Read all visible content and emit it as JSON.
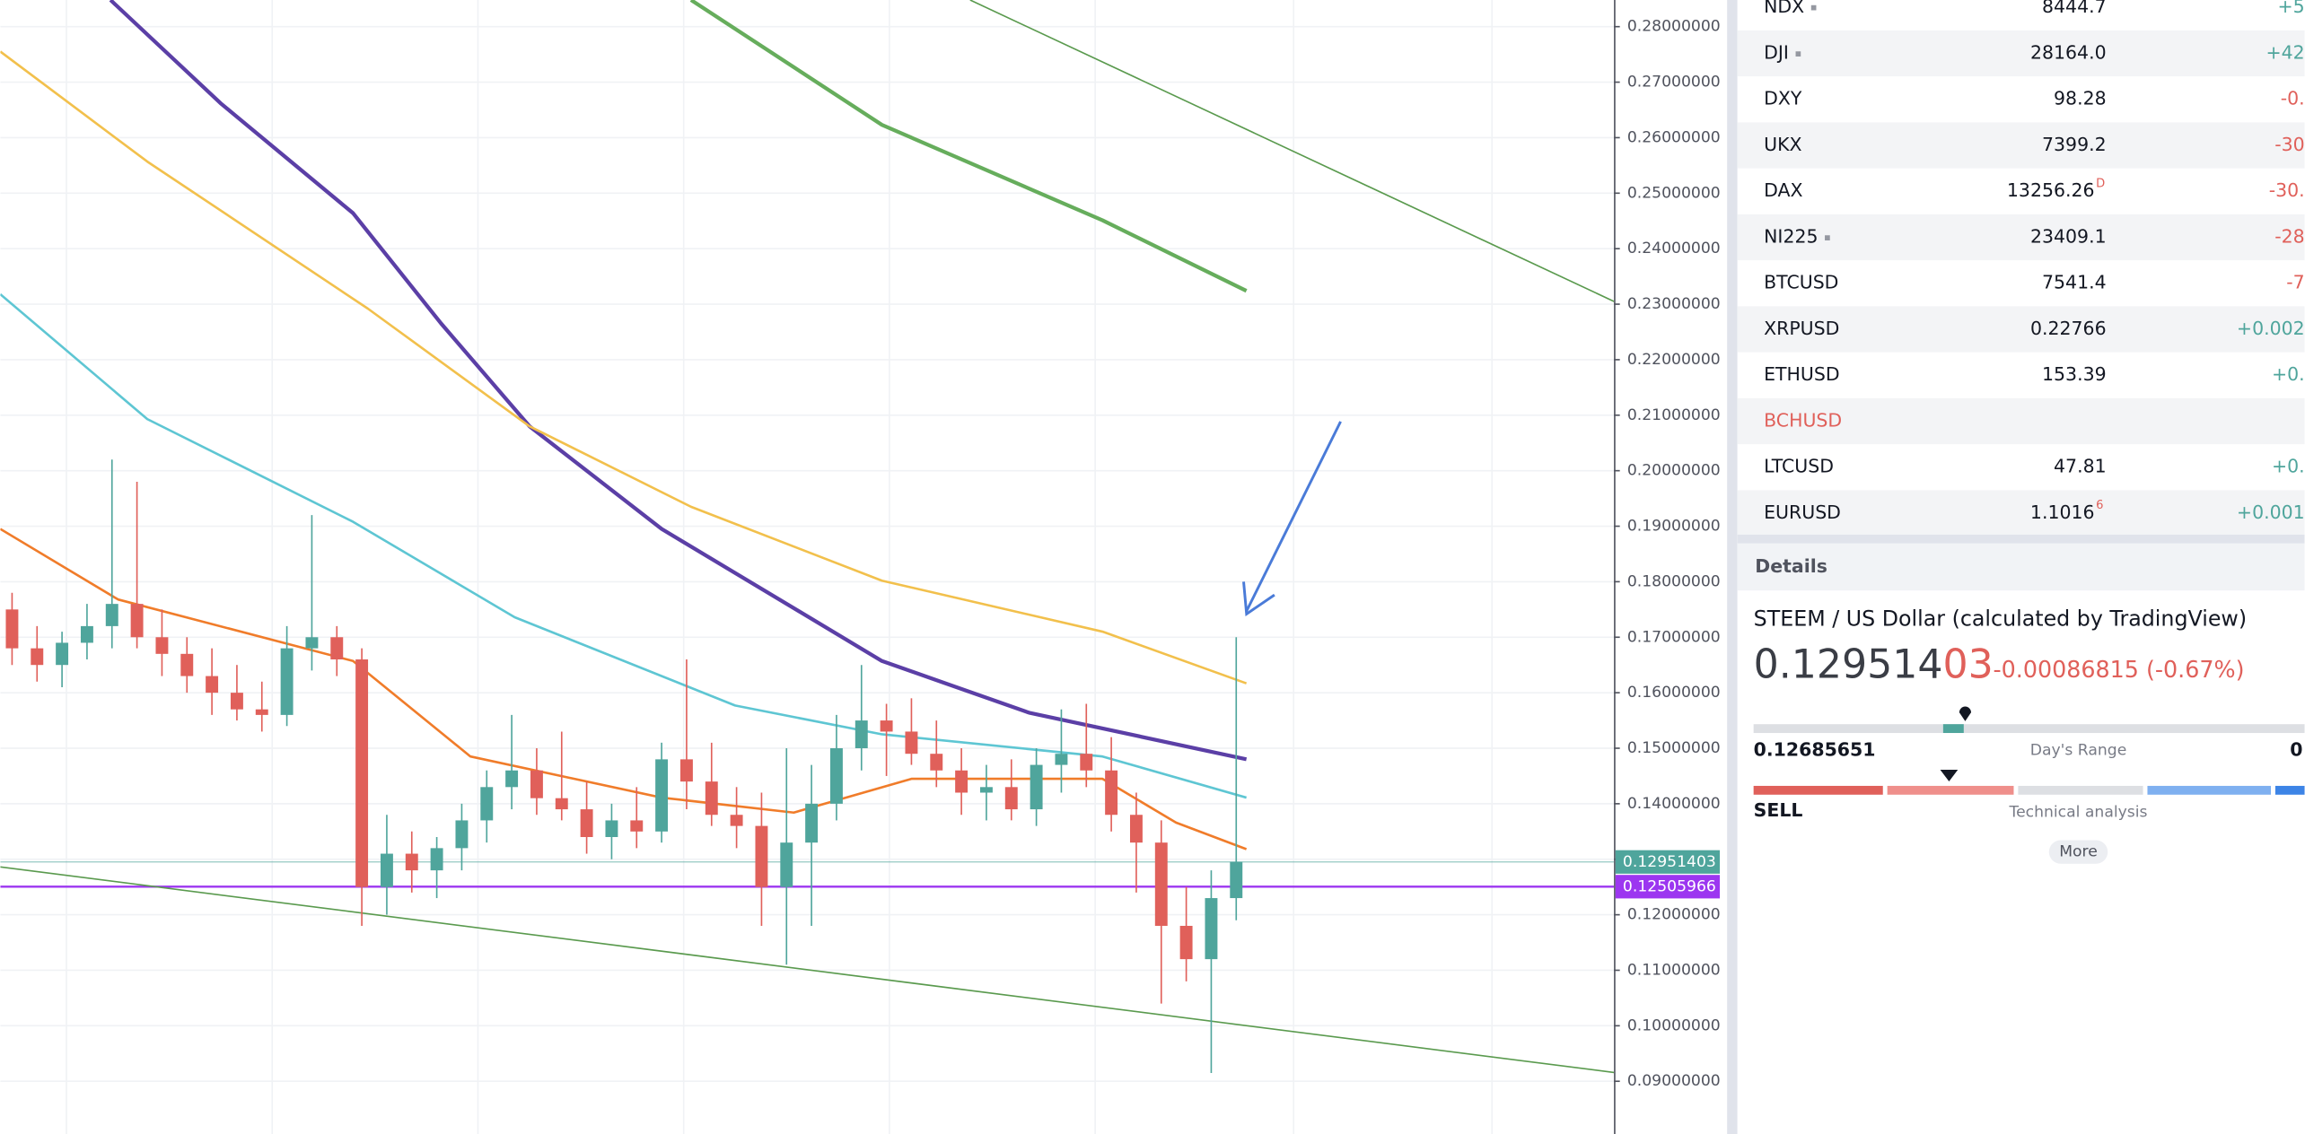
{
  "chart": {
    "type": "candlestick",
    "ylim": [
      0.0805,
      0.2848
    ],
    "xlim": [
      -0.47,
      64.12
    ],
    "yticks": [
      {
        "value": 0.28,
        "label": "0.28000000"
      },
      {
        "value": 0.27,
        "label": "0.27000000"
      },
      {
        "value": 0.26,
        "label": "0.26000000"
      },
      {
        "value": 0.25,
        "label": "0.25000000"
      },
      {
        "value": 0.24,
        "label": "0.24000000"
      },
      {
        "value": 0.23,
        "label": "0.23000000"
      },
      {
        "value": 0.22,
        "label": "0.22000000"
      },
      {
        "value": 0.21,
        "label": "0.21000000"
      },
      {
        "value": 0.2,
        "label": "0.20000000"
      },
      {
        "value": 0.19,
        "label": "0.19000000"
      },
      {
        "value": 0.18,
        "label": "0.18000000"
      },
      {
        "value": 0.17,
        "label": "0.17000000"
      },
      {
        "value": 0.16,
        "label": "0.16000000"
      },
      {
        "value": 0.15,
        "label": "0.15000000"
      },
      {
        "value": 0.14,
        "label": "0.14000000"
      },
      {
        "value": 0.13,
        "label": "0.13000000"
      },
      {
        "value": 0.12,
        "label": "0.12000000"
      },
      {
        "value": 0.11,
        "label": "0.11000000"
      },
      {
        "value": 0.1,
        "label": "0.10000000"
      },
      {
        "value": 0.09,
        "label": "0.09000000"
      }
    ],
    "up_color": "#4fa59c",
    "down_color": "#e0605a",
    "candles": [
      [
        0.175,
        0.178,
        0.165,
        0.168
      ],
      [
        0.168,
        0.172,
        0.162,
        0.165
      ],
      [
        0.165,
        0.171,
        0.161,
        0.169
      ],
      [
        0.169,
        0.176,
        0.166,
        0.172
      ],
      [
        0.172,
        0.202,
        0.168,
        0.176
      ],
      [
        0.176,
        0.198,
        0.168,
        0.17
      ],
      [
        0.17,
        0.175,
        0.163,
        0.167
      ],
      [
        0.167,
        0.17,
        0.16,
        0.163
      ],
      [
        0.163,
        0.168,
        0.156,
        0.16
      ],
      [
        0.16,
        0.165,
        0.155,
        0.157
      ],
      [
        0.157,
        0.162,
        0.153,
        0.156
      ],
      [
        0.156,
        0.172,
        0.154,
        0.168
      ],
      [
        0.168,
        0.192,
        0.164,
        0.17
      ],
      [
        0.17,
        0.172,
        0.163,
        0.166
      ],
      [
        0.166,
        0.168,
        0.118,
        0.125
      ],
      [
        0.125,
        0.138,
        0.12,
        0.131
      ],
      [
        0.131,
        0.135,
        0.124,
        0.128
      ],
      [
        0.128,
        0.134,
        0.123,
        0.132
      ],
      [
        0.132,
        0.14,
        0.128,
        0.137
      ],
      [
        0.137,
        0.146,
        0.133,
        0.143
      ],
      [
        0.143,
        0.156,
        0.139,
        0.146
      ],
      [
        0.146,
        0.15,
        0.138,
        0.141
      ],
      [
        0.141,
        0.153,
        0.137,
        0.139
      ],
      [
        0.139,
        0.144,
        0.131,
        0.134
      ],
      [
        0.134,
        0.14,
        0.13,
        0.137
      ],
      [
        0.137,
        0.143,
        0.132,
        0.135
      ],
      [
        0.135,
        0.151,
        0.133,
        0.148
      ],
      [
        0.148,
        0.166,
        0.139,
        0.144
      ],
      [
        0.144,
        0.151,
        0.136,
        0.138
      ],
      [
        0.138,
        0.143,
        0.132,
        0.136
      ],
      [
        0.136,
        0.142,
        0.118,
        0.125
      ],
      [
        0.125,
        0.15,
        0.111,
        0.133
      ],
      [
        0.133,
        0.147,
        0.118,
        0.14
      ],
      [
        0.14,
        0.156,
        0.137,
        0.15
      ],
      [
        0.15,
        0.165,
        0.146,
        0.155
      ],
      [
        0.155,
        0.158,
        0.145,
        0.153
      ],
      [
        0.153,
        0.159,
        0.147,
        0.149
      ],
      [
        0.149,
        0.155,
        0.143,
        0.146
      ],
      [
        0.146,
        0.15,
        0.138,
        0.142
      ],
      [
        0.142,
        0.147,
        0.137,
        0.143
      ],
      [
        0.143,
        0.148,
        0.137,
        0.139
      ],
      [
        0.139,
        0.15,
        0.136,
        0.147
      ],
      [
        0.147,
        0.157,
        0.142,
        0.149
      ],
      [
        0.149,
        0.158,
        0.143,
        0.146
      ],
      [
        0.146,
        0.152,
        0.135,
        0.138
      ],
      [
        0.138,
        0.142,
        0.124,
        0.133
      ],
      [
        0.133,
        0.137,
        0.104,
        0.118
      ],
      [
        0.118,
        0.125,
        0.108,
        0.112
      ],
      [
        0.112,
        0.128,
        0.0915,
        0.123
      ],
      [
        0.123,
        0.17,
        0.119,
        0.12951403
      ]
    ],
    "lines": [
      {
        "color": "#5b3fa6",
        "width": 2.6,
        "x": [
          3.94,
          8.35,
          13.65,
          17.18,
          20.71,
          26,
          34.82,
          40.71,
          49.41
        ],
        "values": [
          0.2848,
          0.2662,
          0.2464,
          0.2265,
          0.208,
          0.1895,
          0.1657,
          0.1564,
          0.148
        ]
      },
      {
        "color": "#f2c04c",
        "width": 1.6,
        "x": [
          -0.47,
          5.41,
          14.24,
          20.71,
          27.18,
          34.82,
          43.65,
          49.41
        ],
        "values": [
          0.2755,
          0.2557,
          0.2292,
          0.208,
          0.1935,
          0.1802,
          0.171,
          0.1617
        ]
      },
      {
        "color": "#5ec6d3",
        "width": 1.6,
        "x": [
          -0.47,
          5.41,
          13.65,
          20.12,
          28.94,
          34.82,
          43.65,
          49.41
        ],
        "values": [
          0.2318,
          0.2093,
          0.1908,
          0.1736,
          0.1577,
          0.1525,
          0.1485,
          0.1411
        ]
      },
      {
        "color": "#f07c2a",
        "width": 1.6,
        "x": [
          -0.47,
          4.24,
          13.65,
          18.35,
          26,
          31.29,
          36,
          43.65,
          46.59,
          49.41
        ],
        "values": [
          0.1895,
          0.1768,
          0.1657,
          0.1485,
          0.1411,
          0.1384,
          0.1445,
          0.1445,
          0.1366,
          0.1318
        ]
      },
      {
        "color": "#66ad5c",
        "width": 2.6,
        "x": [
          27.18,
          34.82,
          43.65,
          49.41
        ],
        "values": [
          0.2848,
          0.2623,
          0.2451,
          0.2324
        ]
      },
      {
        "color": "#5a9a4e",
        "width": 1,
        "x": [
          38.35,
          64.12
        ],
        "values": [
          0.2848,
          0.2305
        ]
      },
      {
        "color": "#5a9a4e",
        "width": 1,
        "x": [
          -0.47,
          64.12
        ],
        "values": [
          0.1286,
          0.0916
        ]
      }
    ],
    "price_lines": [
      {
        "value": 0.12951403,
        "label": "0.12951403",
        "color": "#4fa59c"
      },
      {
        "value": 0.12505966,
        "label": "0.12505966",
        "color": "#9c36f0"
      }
    ]
  },
  "watchlist": [
    {
      "symbol": "NDX",
      "flag": "▪",
      "last": "8444.7",
      "change": "+5"
    },
    {
      "symbol": "DJI",
      "flag": "▪",
      "last": "28164.0",
      "change": "+42"
    },
    {
      "symbol": "DXY",
      "last": "98.28",
      "change": "-0."
    },
    {
      "symbol": "UKX",
      "last": "7399.2",
      "change": "-30"
    },
    {
      "symbol": "DAX",
      "last": "13256.26",
      "last_sup": "D",
      "change": "-30."
    },
    {
      "symbol": "NI225",
      "flag": "▪",
      "last": "23409.1",
      "change": "-28"
    },
    {
      "symbol": "BTCUSD",
      "last": "7541.4",
      "change": "-7"
    },
    {
      "symbol": "XRPUSD",
      "last": "0.22766",
      "change": "+0.002"
    },
    {
      "symbol": "ETHUSD",
      "last": "153.39",
      "change": "+0."
    },
    {
      "symbol": "BCHUSD",
      "symbol_color": "#e0605a"
    },
    {
      "symbol": "LTCUSD",
      "last": "47.81",
      "change": "+0."
    },
    {
      "symbol": "EURUSD",
      "last": "1.1016",
      "last_sup": "6",
      "change": "+0.001"
    }
  ],
  "details": {
    "header": "Details",
    "title": "STEEM / US Dollar (calculated by TradingView)",
    "price_main": "0.129514",
    "price_tail": "03",
    "change": "-0.00086815 (-0.67%)",
    "range_low": "0.12685651",
    "range_label": "Day's Range",
    "range_high": "0",
    "rating": "SELL",
    "rating_label": "Technical analysis",
    "more": "More"
  }
}
